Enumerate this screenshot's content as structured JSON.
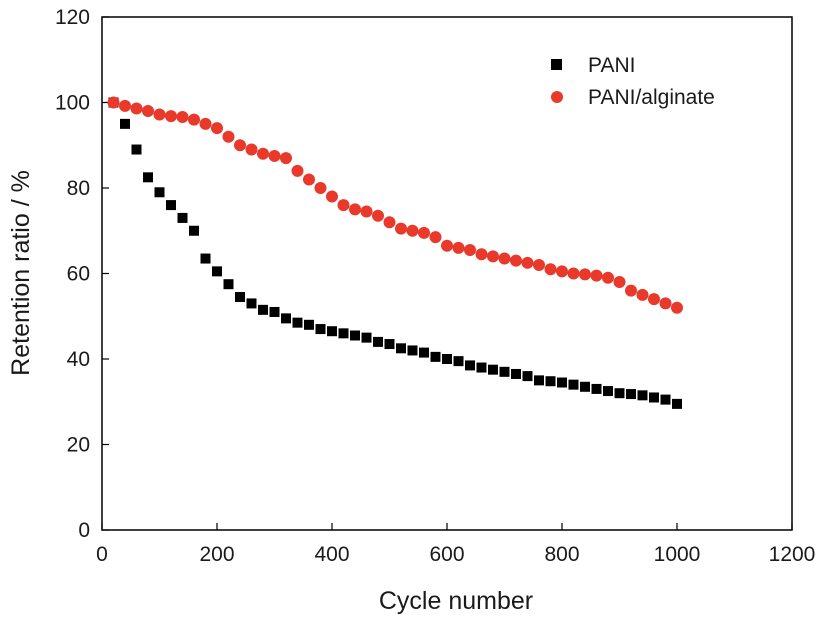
{
  "chart_data": {
    "type": "scatter",
    "xlabel": "Cycle number",
    "ylabel": "Retention ratio / %",
    "xlim": [
      0,
      1200
    ],
    "ylim": [
      0,
      120
    ],
    "xticks": [
      0,
      200,
      400,
      600,
      800,
      1000,
      1200
    ],
    "yticks": [
      0,
      20,
      40,
      60,
      80,
      100,
      120
    ],
    "grid": false,
    "legend_position": "top-right",
    "series": [
      {
        "name": "PANI",
        "marker": "square",
        "color": "#000000",
        "x": [
          20,
          40,
          60,
          80,
          100,
          120,
          140,
          160,
          180,
          200,
          220,
          240,
          260,
          280,
          300,
          320,
          340,
          360,
          380,
          400,
          420,
          440,
          460,
          480,
          500,
          520,
          540,
          560,
          580,
          600,
          620,
          640,
          660,
          680,
          700,
          720,
          740,
          760,
          780,
          800,
          820,
          840,
          860,
          880,
          900,
          920,
          940,
          960,
          980,
          1000
        ],
        "y": [
          100,
          95,
          89,
          82.5,
          79,
          76,
          73,
          70,
          63.5,
          60.5,
          57.5,
          54.5,
          53,
          51.5,
          51,
          49.5,
          48.5,
          48,
          47,
          46.5,
          46,
          45.5,
          45,
          44,
          43.5,
          42.5,
          42,
          41.5,
          40.5,
          40,
          39.5,
          38.5,
          38,
          37.5,
          37,
          36.5,
          36,
          35,
          34.8,
          34.5,
          34,
          33.5,
          33,
          32.5,
          32,
          31.8,
          31.5,
          31,
          30.5,
          29.5
        ]
      },
      {
        "name": "PANI/alginate",
        "marker": "circle",
        "color": "#e8392b",
        "x": [
          20,
          40,
          60,
          80,
          100,
          120,
          140,
          160,
          180,
          200,
          220,
          240,
          260,
          280,
          300,
          320,
          340,
          360,
          380,
          400,
          420,
          440,
          460,
          480,
          500,
          520,
          540,
          560,
          580,
          600,
          620,
          640,
          660,
          680,
          700,
          720,
          740,
          760,
          780,
          800,
          820,
          840,
          860,
          880,
          900,
          920,
          940,
          960,
          980,
          1000
        ],
        "y": [
          100,
          99.2,
          98.6,
          98,
          97.2,
          96.8,
          96.6,
          96,
          95,
          94,
          92,
          90,
          89,
          88,
          87.5,
          87,
          84,
          82,
          80,
          78,
          76,
          75,
          74.5,
          73.5,
          72,
          70.5,
          70,
          69.5,
          68.5,
          66.5,
          66,
          65.5,
          64.5,
          64,
          63.5,
          63,
          62.5,
          62,
          61,
          60.5,
          60,
          59.8,
          59.5,
          59,
          58,
          56,
          55,
          54,
          53,
          52
        ]
      }
    ]
  }
}
